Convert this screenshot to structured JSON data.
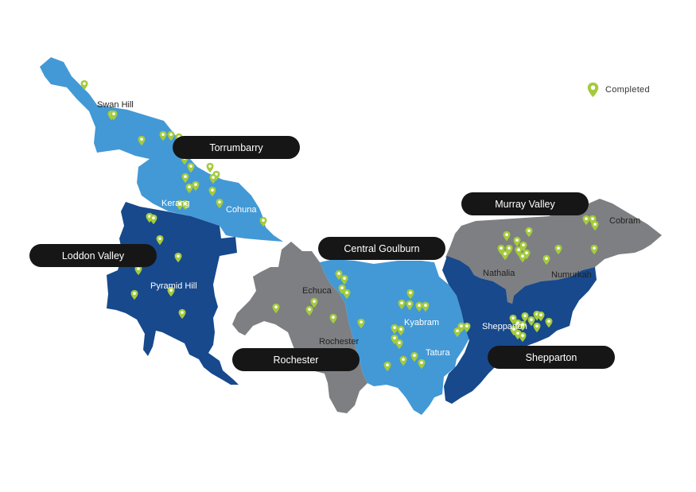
{
  "colors": {
    "light_blue": "#4399D5",
    "dark_blue": "#17498C",
    "grey": "#7E7F82",
    "pin": "#A5CB3C",
    "label_bg": "#161617"
  },
  "legend": {
    "icon": "map-pin-icon",
    "label": "Completed"
  },
  "regions": [
    {
      "name": "Torrumbarry"
    },
    {
      "name": "Loddon Valley"
    },
    {
      "name": "Murray Valley"
    },
    {
      "name": "Central Goulburn"
    },
    {
      "name": "Rochester"
    },
    {
      "name": "Shepparton"
    }
  ],
  "towns": [
    {
      "name": "Swan Hill"
    },
    {
      "name": "Kerang"
    },
    {
      "name": "Cohuna"
    },
    {
      "name": "Pyramid Hill"
    },
    {
      "name": "Echuca"
    },
    {
      "name": "Rochester"
    },
    {
      "name": "Kyabram"
    },
    {
      "name": "Tatura"
    },
    {
      "name": "Cobram"
    },
    {
      "name": "Nathalia"
    },
    {
      "name": "Numurkah"
    },
    {
      "name": "Shepparton"
    }
  ]
}
